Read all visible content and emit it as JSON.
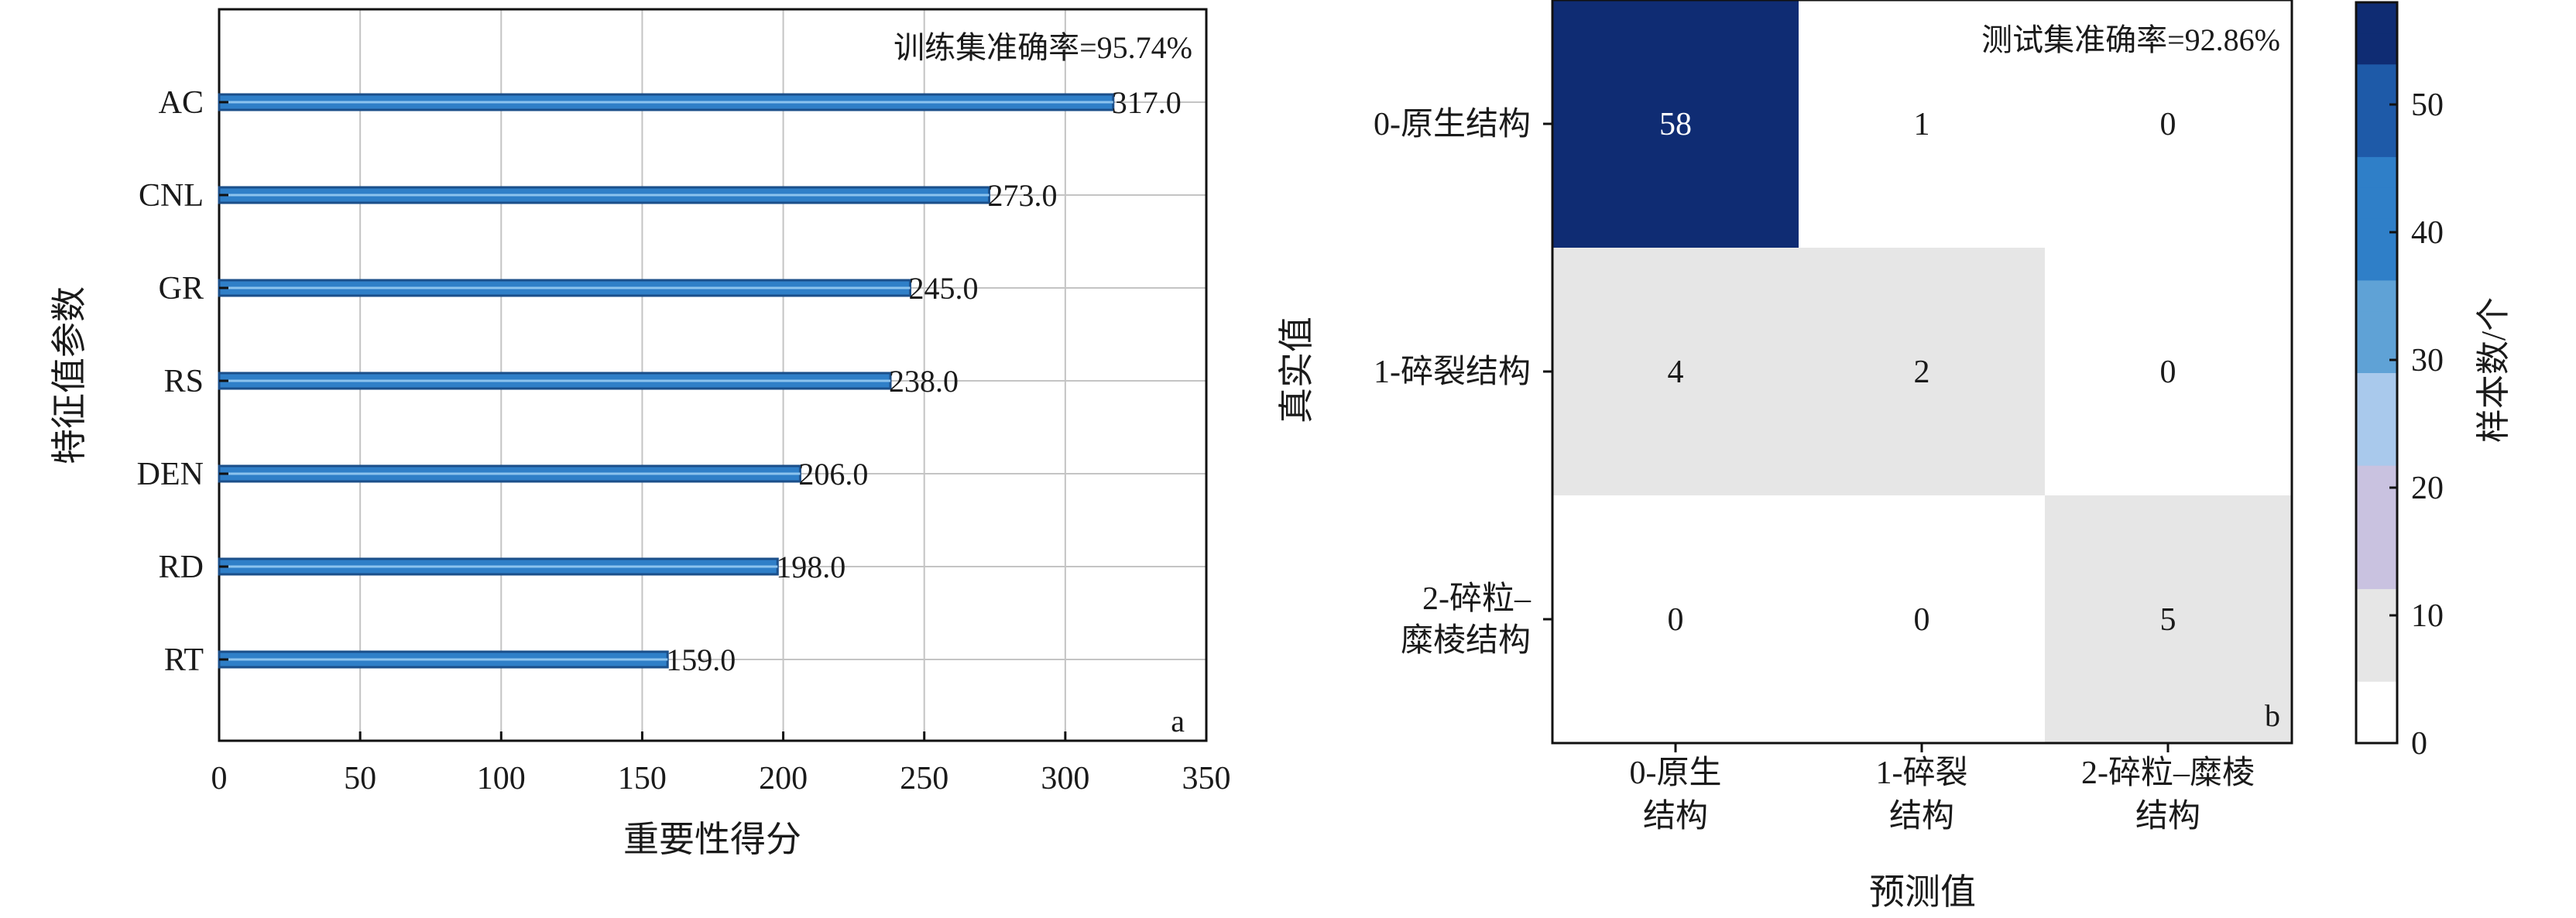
{
  "chart_data": [
    {
      "type": "bar",
      "orientation": "horizontal",
      "panel": "a",
      "annotation": "训练集准确率=95.74%",
      "xlabel": "重要性得分",
      "ylabel": "特征值参数",
      "categories": [
        "AC",
        "CNL",
        "GR",
        "RS",
        "DEN",
        "RD",
        "RT"
      ],
      "values": [
        317.0,
        273.0,
        245.0,
        238.0,
        206.0,
        198.0,
        159.0
      ],
      "value_labels": [
        "317.0",
        "273.0",
        "245.0",
        "238.0",
        "206.0",
        "198.0",
        "159.0"
      ],
      "xlim": [
        0,
        350
      ],
      "xticks": [
        0,
        50,
        100,
        150,
        200,
        250,
        300,
        350
      ],
      "grid": true,
      "bar_color": "#2f7fc8"
    },
    {
      "type": "heatmap",
      "panel": "b",
      "annotation": "测试集准确率=92.86%",
      "xlabel": "预测值",
      "ylabel": "真实值",
      "x_categories": [
        [
          "0-原生",
          "结构"
        ],
        [
          "1-碎裂",
          "结构"
        ],
        [
          "2-碎粒–糜棱",
          "结构"
        ]
      ],
      "y_categories": [
        [
          "0-原生结构"
        ],
        [
          "1-碎裂结构"
        ],
        [
          "2-碎粒–",
          "糜棱结构"
        ]
      ],
      "matrix": [
        [
          58,
          1,
          0
        ],
        [
          4,
          2,
          0
        ],
        [
          0,
          0,
          5
        ]
      ],
      "colorbar": {
        "label": "样本数/个",
        "range": [
          0,
          58
        ],
        "ticks": [
          0,
          10,
          20,
          30,
          40,
          50
        ],
        "colors": [
          "#ffffff",
          "#e8e8e8",
          "#c9c2e0",
          "#a9c9ec",
          "#5fa2d6",
          "#2f7fc8",
          "#1e5aa8",
          "#0f2c73"
        ]
      }
    }
  ]
}
